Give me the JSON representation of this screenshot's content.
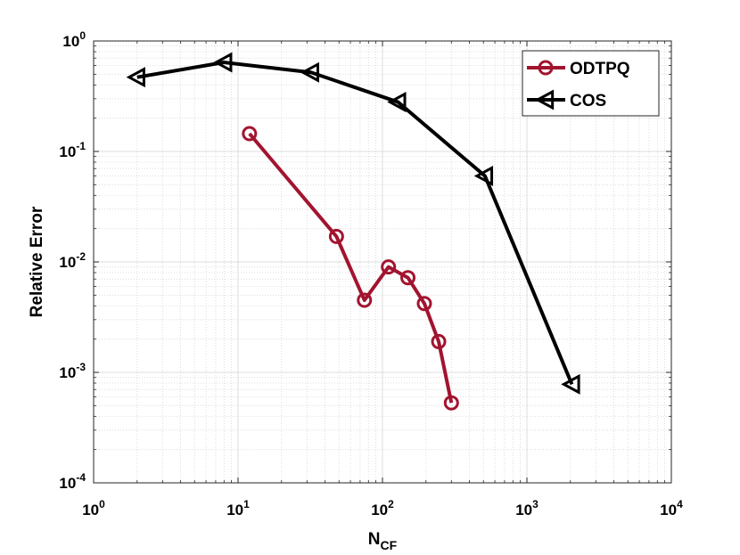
{
  "chart_data": {
    "type": "line",
    "x_scale": "log",
    "y_scale": "log",
    "xlim": [
      1,
      10000
    ],
    "ylim": [
      0.0001,
      1
    ],
    "grid": true,
    "legend_position": "top-right",
    "xlabel": {
      "main": "N",
      "sub": "CF"
    },
    "ylabel": "Relative Error",
    "x_ticks": [
      {
        "base": "10",
        "exp": "0",
        "value": 1
      },
      {
        "base": "10",
        "exp": "1",
        "value": 10
      },
      {
        "base": "10",
        "exp": "2",
        "value": 100
      },
      {
        "base": "10",
        "exp": "3",
        "value": 1000
      },
      {
        "base": "10",
        "exp": "4",
        "value": 10000
      }
    ],
    "y_ticks": [
      {
        "base": "10",
        "exp": "0",
        "value": 1
      },
      {
        "base": "10",
        "exp": "-1",
        "value": 0.1
      },
      {
        "base": "10",
        "exp": "-2",
        "value": 0.01
      },
      {
        "base": "10",
        "exp": "-3",
        "value": 0.001
      },
      {
        "base": "10",
        "exp": "-4",
        "value": 0.0001
      }
    ],
    "series": [
      {
        "name": "ODTPQ",
        "color": "#a2142f",
        "marker": "circle",
        "x": [
          12,
          48,
          75,
          110,
          150,
          195,
          245,
          300
        ],
        "y": [
          0.145,
          0.017,
          0.0045,
          0.009,
          0.0072,
          0.0042,
          0.0019,
          0.00053
        ]
      },
      {
        "name": "COS",
        "color": "#000000",
        "marker": "triangle-left",
        "x": [
          2,
          8,
          32,
          128,
          512,
          2048
        ],
        "y": [
          0.47,
          0.64,
          0.52,
          0.28,
          0.06,
          0.00078
        ]
      }
    ]
  }
}
